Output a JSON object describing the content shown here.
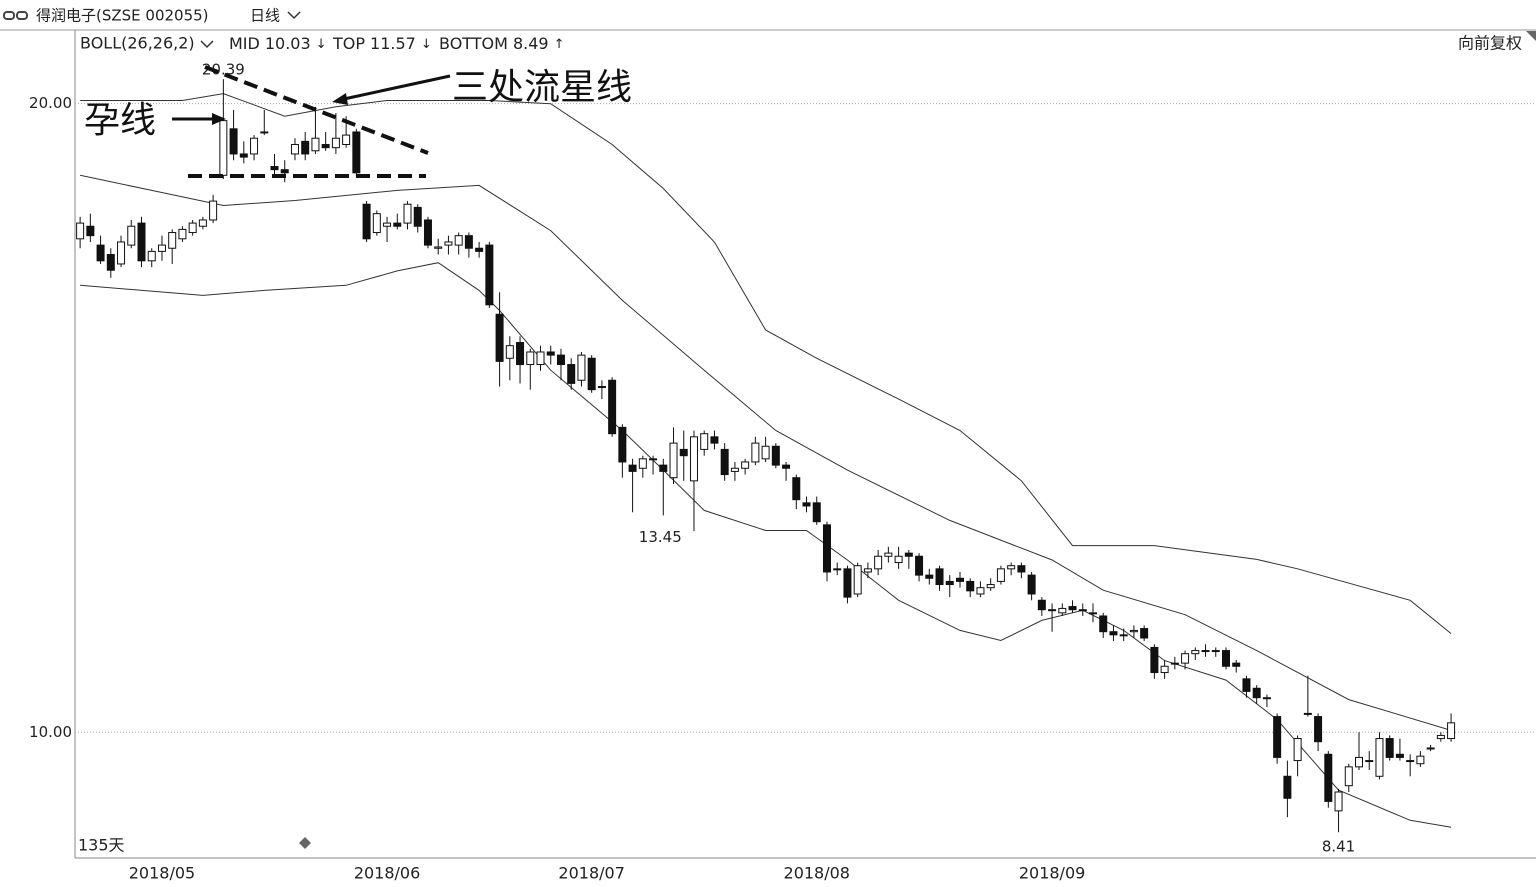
{
  "chart_data": {
    "type": "candlestick",
    "title": "得润电子(SZSE 002055)",
    "period": "日线",
    "indicator": "BOLL(26,26,2)",
    "adjust": "向前复权",
    "days_label": "135天",
    "annotations": [
      "孕线",
      "三处流星线"
    ],
    "up_color": "#ffffff",
    "down_color": "#111111",
    "xlim": [
      -0.5,
      142.3
    ],
    "xticks": [
      {
        "value": 8,
        "label": "2018/05"
      },
      {
        "value": 30,
        "label": "2018/06"
      },
      {
        "value": 50,
        "label": "2018/07"
      },
      {
        "value": 72,
        "label": "2018/08"
      },
      {
        "value": 95,
        "label": "2018/09"
      }
    ],
    "ylim": [
      8.0,
      21.14
    ],
    "yticks": [
      {
        "value": 20,
        "label": "20.00"
      },
      {
        "value": 10,
        "label": "10.00"
      }
    ],
    "grid": true,
    "open": [
      17.85,
      18.05,
      17.75,
      17.6,
      17.45,
      17.75,
      18.1,
      17.5,
      17.65,
      17.7,
      17.85,
      17.95,
      18.05,
      18.15,
      18.86,
      19.6,
      19.2,
      19.2,
      19.55,
      19.0,
      18.95,
      19.2,
      19.4,
      19.25,
      19.35,
      19.3,
      19.35,
      19.55,
      18.4,
      17.95,
      18.05,
      18.1,
      18.1,
      18.35,
      18.15,
      17.7,
      17.75,
      17.75,
      17.9,
      17.7,
      17.75,
      16.65,
      15.95,
      16.2,
      15.85,
      15.85,
      16.05,
      16.0,
      15.85,
      15.6,
      15.95,
      15.5,
      15.6,
      14.85,
      14.25,
      14.2,
      14.35,
      14.25,
      14.05,
      14.5,
      14.0,
      14.5,
      14.7,
      14.5,
      14.15,
      14.2,
      14.3,
      14.35,
      14.55,
      14.25,
      14.05,
      13.65,
      13.65,
      13.3,
      12.6,
      12.6,
      12.2,
      12.55,
      12.6,
      12.8,
      12.7,
      12.85,
      12.8,
      12.5,
      12.6,
      12.4,
      12.45,
      12.4,
      12.2,
      12.3,
      12.4,
      12.6,
      12.65,
      12.5,
      12.1,
      11.95,
      11.9,
      12.0,
      11.95,
      11.9,
      11.85,
      11.6,
      11.55,
      11.6,
      11.65,
      11.35,
      10.95,
      11.1,
      11.1,
      11.25,
      11.3,
      11.3,
      11.3,
      11.1,
      10.85,
      10.7,
      10.55,
      10.25,
      9.3,
      9.55,
      10.3,
      10.25,
      9.65,
      8.75,
      9.15,
      9.45,
      9.55,
      9.3,
      9.9,
      9.65,
      9.55,
      9.5,
      9.75,
      9.9,
      9.9
    ],
    "high": [
      18.2,
      18.25,
      17.9,
      17.7,
      17.9,
      18.15,
      18.2,
      17.7,
      17.9,
      18.0,
      18.05,
      18.15,
      18.2,
      18.55,
      20.39,
      19.9,
      19.4,
      19.5,
      19.9,
      19.2,
      19.1,
      19.45,
      19.55,
      19.95,
      19.55,
      19.85,
      19.8,
      19.6,
      18.45,
      18.3,
      18.2,
      18.25,
      18.45,
      18.4,
      18.2,
      17.85,
      17.9,
      17.95,
      17.95,
      17.8,
      17.8,
      17.0,
      16.3,
      16.3,
      16.1,
      16.15,
      16.15,
      16.1,
      15.95,
      16.05,
      16.0,
      15.6,
      15.65,
      14.9,
      14.35,
      14.4,
      14.4,
      14.35,
      14.85,
      14.8,
      14.8,
      14.8,
      14.8,
      14.6,
      14.3,
      14.35,
      14.7,
      14.7,
      14.6,
      14.3,
      14.1,
      13.75,
      13.75,
      13.35,
      12.7,
      12.65,
      12.7,
      12.7,
      12.9,
      12.95,
      12.95,
      12.9,
      12.85,
      12.6,
      12.65,
      12.5,
      12.55,
      12.45,
      12.4,
      12.45,
      12.65,
      12.7,
      12.7,
      12.55,
      12.15,
      12.05,
      12.05,
      12.1,
      12.05,
      12.05,
      11.9,
      11.7,
      11.65,
      11.7,
      11.7,
      11.4,
      11.15,
      11.2,
      11.3,
      11.35,
      11.4,
      11.35,
      11.35,
      11.15,
      10.9,
      10.75,
      10.6,
      10.3,
      9.55,
      9.95,
      10.9,
      10.3,
      9.7,
      9.1,
      9.5,
      10.0,
      9.7,
      10.0,
      9.95,
      9.9,
      9.65,
      9.7,
      9.8,
      10.0,
      10.3
    ],
    "low": [
      17.7,
      17.8,
      17.45,
      17.23,
      17.4,
      17.7,
      17.4,
      17.4,
      17.5,
      17.45,
      17.8,
      17.9,
      18.0,
      18.1,
      18.8,
      19.1,
      19.05,
      19.1,
      19.5,
      18.85,
      18.75,
      19.1,
      19.1,
      19.2,
      19.25,
      19.2,
      19.3,
      18.85,
      17.8,
      17.9,
      17.8,
      18.0,
      18.0,
      17.95,
      17.7,
      17.6,
      17.6,
      17.6,
      17.55,
      17.55,
      16.75,
      15.5,
      15.6,
      15.55,
      15.45,
      15.75,
      15.85,
      15.6,
      15.45,
      15.5,
      15.4,
      15.3,
      14.7,
      14.05,
      13.5,
      14.05,
      14.1,
      13.45,
      13.95,
      14.0,
      13.2,
      14.4,
      14.5,
      14.0,
      14.0,
      14.1,
      14.25,
      14.3,
      14.2,
      14.0,
      13.55,
      13.5,
      13.3,
      12.4,
      12.5,
      12.05,
      12.15,
      12.45,
      12.5,
      12.7,
      12.6,
      12.6,
      12.4,
      12.35,
      12.25,
      12.15,
      12.3,
      12.15,
      12.15,
      12.25,
      12.35,
      12.5,
      12.45,
      12.1,
      11.85,
      11.6,
      11.85,
      11.9,
      11.85,
      11.75,
      11.5,
      11.45,
      11.45,
      11.5,
      11.45,
      10.85,
      10.85,
      11.0,
      11.0,
      11.15,
      11.2,
      11.2,
      11.0,
      10.95,
      10.55,
      10.45,
      10.4,
      9.5,
      8.65,
      9.3,
      10.25,
      9.7,
      8.8,
      8.41,
      9.05,
      9.4,
      9.4,
      9.25,
      9.55,
      9.55,
      9.3,
      9.45,
      9.7,
      9.85,
      9.85
    ],
    "close": [
      18.1,
      17.9,
      17.5,
      17.35,
      17.8,
      18.05,
      17.5,
      17.65,
      17.75,
      17.95,
      18.0,
      18.1,
      18.15,
      18.45,
      19.73,
      19.2,
      19.15,
      19.45,
      19.55,
      18.95,
      18.9,
      19.35,
      19.2,
      19.45,
      19.3,
      19.45,
      19.5,
      18.9,
      17.85,
      18.25,
      18.1,
      18.05,
      18.4,
      18.05,
      17.75,
      17.72,
      17.8,
      17.9,
      17.7,
      17.65,
      16.8,
      15.9,
      16.15,
      15.85,
      16.05,
      16.05,
      16.0,
      15.85,
      15.55,
      16.0,
      15.45,
      15.5,
      14.75,
      14.3,
      14.15,
      14.35,
      14.35,
      14.15,
      14.6,
      14.4,
      14.7,
      14.75,
      14.6,
      14.1,
      14.2,
      14.3,
      14.6,
      14.55,
      14.25,
      14.2,
      13.7,
      13.6,
      13.35,
      12.55,
      12.6,
      12.15,
      12.65,
      12.6,
      12.8,
      12.85,
      12.8,
      12.8,
      12.5,
      12.45,
      12.35,
      12.35,
      12.4,
      12.25,
      12.3,
      12.35,
      12.6,
      12.65,
      12.55,
      12.2,
      11.95,
      11.95,
      11.97,
      11.95,
      11.95,
      11.9,
      11.6,
      11.55,
      11.55,
      11.62,
      11.5,
      10.95,
      11.05,
      11.1,
      11.25,
      11.3,
      11.3,
      11.3,
      11.05,
      11.05,
      10.65,
      10.55,
      10.55,
      9.6,
      8.95,
      9.9,
      10.3,
      9.85,
      8.9,
      9.05,
      9.45,
      9.6,
      9.55,
      9.9,
      9.6,
      9.6,
      9.55,
      9.62,
      9.75,
      9.95,
      10.15
    ],
    "value_label_high": [
      14
    ],
    "series": [
      {
        "name": "MID",
        "value": 10.03,
        "trend": "↓",
        "color": "#333333",
        "x": [
          0,
          7,
          14,
          21,
          31,
          39,
          46,
          53,
          61,
          68,
          75,
          85,
          95,
          100,
          108,
          115,
          124,
          134
        ],
        "values": [
          18.86,
          18.62,
          18.38,
          18.46,
          18.62,
          18.7,
          17.98,
          16.87,
          15.76,
          14.8,
          14.17,
          13.37,
          12.74,
          12.26,
          11.87,
          11.3,
          10.52,
          10.03
        ]
      },
      {
        "name": "TOP",
        "value": 11.57,
        "trend": "↓",
        "color": "#333333",
        "x": [
          0,
          10,
          14,
          20,
          25,
          30,
          40,
          46,
          52,
          57,
          62,
          67,
          72,
          80,
          86,
          92,
          97,
          105,
          115,
          119,
          130,
          134
        ],
        "values": [
          20.05,
          20.05,
          20.16,
          19.8,
          19.95,
          20.05,
          20.05,
          20.0,
          19.35,
          18.65,
          17.8,
          16.4,
          15.95,
          15.3,
          14.8,
          14.0,
          12.97,
          12.97,
          12.75,
          12.6,
          12.1,
          11.57
        ]
      },
      {
        "name": "BOTTOM",
        "value": 8.49,
        "trend": "↑",
        "color": "#333333",
        "x": [
          0,
          12,
          18,
          26,
          31,
          35,
          39,
          41,
          46,
          53,
          57,
          61,
          67,
          71,
          75,
          80,
          86,
          90,
          94,
          98,
          102,
          106,
          112,
          117,
          123,
          130,
          134
        ],
        "values": [
          17.11,
          16.95,
          17.03,
          17.11,
          17.34,
          17.47,
          17.03,
          16.71,
          15.76,
          14.8,
          14.17,
          13.53,
          13.21,
          13.21,
          12.74,
          12.1,
          11.62,
          11.46,
          11.78,
          11.94,
          11.62,
          11.14,
          10.83,
          10.2,
          9.08,
          8.6,
          8.49
        ]
      }
    ]
  }
}
